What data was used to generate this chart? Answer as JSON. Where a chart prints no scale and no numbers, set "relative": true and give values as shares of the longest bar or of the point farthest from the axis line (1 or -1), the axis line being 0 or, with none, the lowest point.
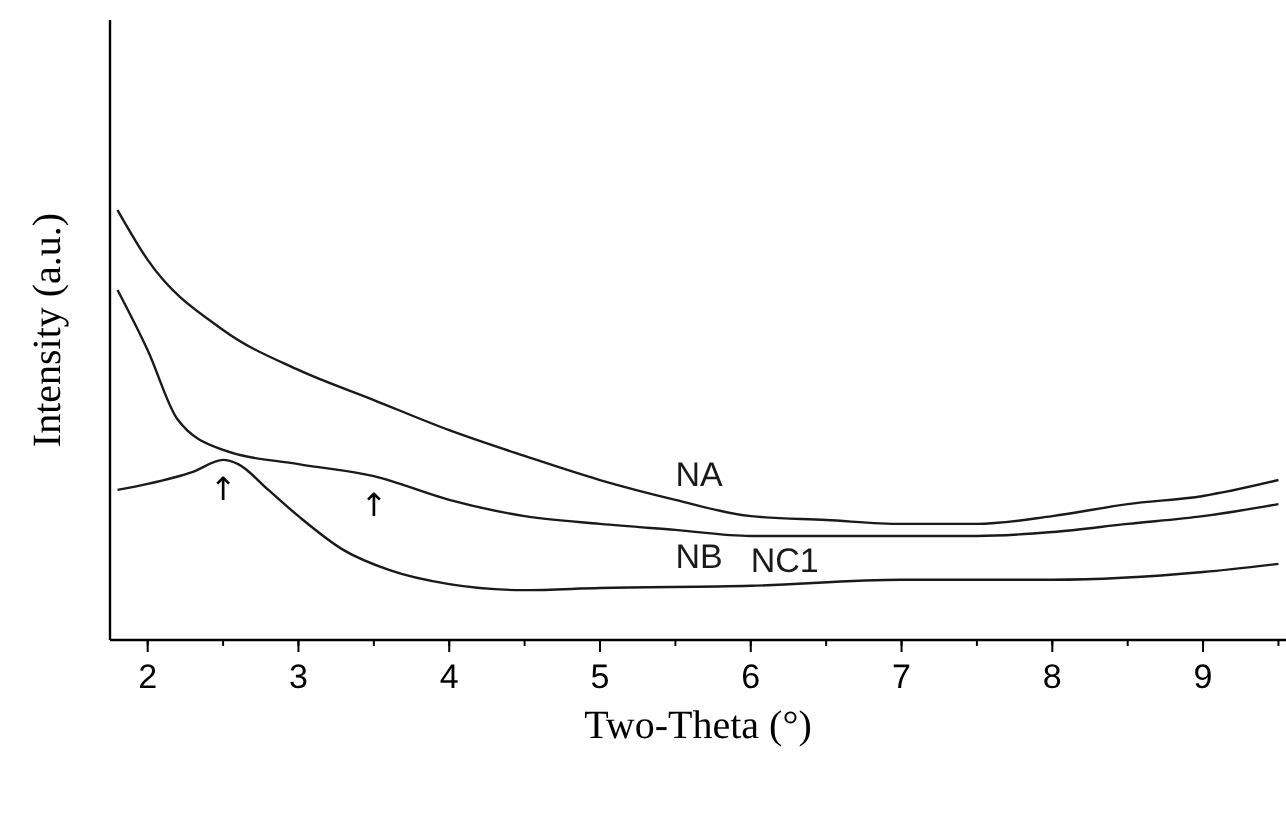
{
  "chart_data": {
    "type": "line",
    "xlabel": "Two-Theta (°)",
    "ylabel": "Intensity (a.u.)",
    "relative": true,
    "xlim": [
      1.75,
      9.55
    ],
    "xticks": [
      2,
      3,
      4,
      5,
      6,
      7,
      8,
      9
    ],
    "grid": false,
    "line_style": "solid",
    "annotations": [
      {
        "text": "↑",
        "x": 2.5,
        "y": 0.419
      },
      {
        "text": "↑",
        "x": 3.5,
        "y": 0.381
      }
    ],
    "series": [
      {
        "name": "NA",
        "color": "#1a1a1a",
        "x": [
          1.8,
          2.0,
          2.5,
          3,
          3.5,
          4,
          4.5,
          5,
          5.5,
          6,
          6.5,
          7,
          7.5,
          8,
          8.5,
          9,
          9.5
        ],
        "values": [
          1.0,
          0.884,
          0.721,
          0.628,
          0.558,
          0.488,
          0.428,
          0.372,
          0.326,
          0.288,
          0.279,
          0.27,
          0.27,
          0.288,
          0.316,
          0.335,
          0.372
        ]
      },
      {
        "name": "NB",
        "color": "#1a1a1a",
        "x": [
          1.8,
          2.0,
          2.2,
          2.5,
          3,
          3.5,
          4,
          4.5,
          5,
          5.5,
          6,
          6.5,
          7,
          7.5,
          8,
          8.5,
          9,
          9.5
        ],
        "values": [
          0.814,
          0.674,
          0.512,
          0.442,
          0.409,
          0.381,
          0.326,
          0.288,
          0.27,
          0.256,
          0.242,
          0.242,
          0.242,
          0.242,
          0.251,
          0.27,
          0.288,
          0.316
        ]
      },
      {
        "name": "NC1",
        "color": "#1a1a1a",
        "x": [
          1.8,
          2.0,
          2.3,
          2.5,
          2.6,
          2.8,
          3,
          3.3,
          3.6,
          4,
          4.5,
          5,
          6,
          7,
          8,
          9,
          9.5
        ],
        "values": [
          0.349,
          0.363,
          0.391,
          0.419,
          0.409,
          0.349,
          0.288,
          0.209,
          0.163,
          0.13,
          0.116,
          0.121,
          0.126,
          0.14,
          0.14,
          0.158,
          0.177
        ]
      }
    ]
  }
}
